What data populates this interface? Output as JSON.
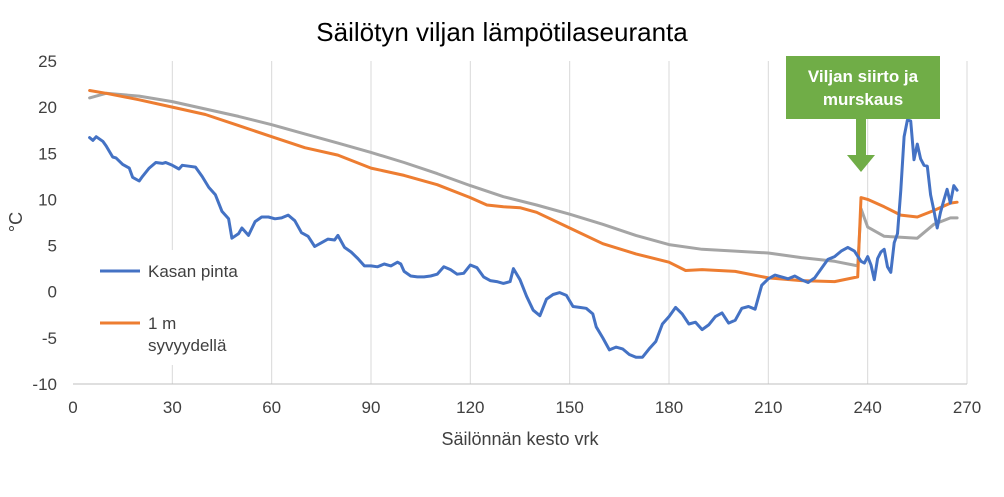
{
  "chart_data": {
    "type": "line",
    "title": "Säilötyn viljan lämpötilaseuranta",
    "xlabel": "Säilönnän kesto vrk",
    "ylabel": "°C",
    "xlim": [
      0,
      270
    ],
    "ylim": [
      -10,
      25
    ],
    "xticks": [
      0,
      30,
      60,
      90,
      120,
      150,
      180,
      210,
      240,
      270
    ],
    "yticks": [
      -10,
      -5,
      0,
      5,
      10,
      15,
      20,
      25
    ],
    "grid": "vertical",
    "legend_placement": "left",
    "annotation": {
      "line1": "Viljan siirto ja",
      "line2": "murskaus",
      "x": 239,
      "color": "#70ad47"
    },
    "series": [
      {
        "name": "Kasan pinta",
        "legend_label": "Kasan pinta",
        "color": "#4472c4",
        "x": [
          5,
          6,
          7,
          9,
          10,
          12,
          13,
          15,
          17,
          18,
          20,
          21,
          23,
          25,
          27,
          28,
          30,
          32,
          33,
          35,
          37,
          39,
          41,
          43,
          45,
          47,
          48,
          50,
          51,
          53,
          55,
          57,
          59,
          61,
          63,
          65,
          67,
          69,
          71,
          73,
          75,
          77,
          79,
          80,
          82,
          84,
          86,
          88,
          90,
          92,
          94,
          96,
          98,
          99,
          100,
          102,
          104,
          106,
          108,
          110,
          112,
          114,
          116,
          118,
          120,
          122,
          124,
          126,
          128,
          130,
          132,
          133,
          135,
          137,
          139,
          141,
          143,
          145,
          147,
          149,
          151,
          153,
          155,
          157,
          158,
          160,
          162,
          164,
          166,
          168,
          170,
          172,
          174,
          176,
          178,
          180,
          182,
          184,
          186,
          188,
          190,
          192,
          194,
          196,
          198,
          200,
          202,
          204,
          206,
          208,
          210,
          212,
          214,
          216,
          218,
          220,
          222,
          224,
          226,
          228,
          230,
          232,
          234,
          236,
          238,
          239,
          240,
          241,
          242,
          243,
          244,
          245,
          246,
          247,
          248,
          249,
          250,
          251,
          252,
          253,
          254,
          255,
          256,
          257,
          258,
          259,
          260,
          261,
          262,
          263,
          264,
          265,
          266,
          267
        ],
        "values": [
          16.7,
          16.4,
          16.8,
          16.3,
          15.8,
          14.6,
          14.5,
          13.8,
          13.4,
          12.4,
          12.0,
          12.5,
          13.4,
          14.0,
          13.9,
          14.0,
          13.7,
          13.3,
          13.7,
          13.6,
          13.5,
          12.5,
          11.3,
          10.5,
          8.7,
          7.9,
          5.8,
          6.3,
          6.9,
          6.1,
          7.6,
          8.1,
          8.1,
          7.9,
          8.0,
          8.3,
          7.7,
          6.4,
          6.0,
          4.9,
          5.3,
          5.7,
          5.6,
          6.1,
          4.8,
          4.3,
          3.6,
          2.8,
          2.8,
          2.7,
          3.0,
          2.8,
          3.2,
          3.0,
          2.2,
          1.7,
          1.6,
          1.6,
          1.7,
          1.9,
          2.7,
          2.4,
          1.9,
          2.0,
          2.9,
          2.6,
          1.6,
          1.2,
          1.1,
          0.9,
          1.1,
          2.5,
          1.3,
          -0.5,
          -2.0,
          -2.6,
          -0.8,
          -0.3,
          -0.1,
          -0.4,
          -1.6,
          -1.7,
          -1.8,
          -2.4,
          -3.8,
          -5.0,
          -6.3,
          -6.0,
          -6.2,
          -6.8,
          -7.1,
          -7.1,
          -6.2,
          -5.4,
          -3.5,
          -2.7,
          -1.7,
          -2.4,
          -3.5,
          -3.3,
          -4.1,
          -3.6,
          -2.7,
          -2.3,
          -3.4,
          -3.1,
          -1.8,
          -1.6,
          -1.9,
          0.7,
          1.4,
          1.8,
          1.6,
          1.4,
          1.7,
          1.3,
          1.0,
          1.5,
          2.5,
          3.5,
          3.8,
          4.4,
          4.8,
          4.4,
          3.3,
          3.1,
          3.8,
          2.9,
          1.3,
          3.6,
          4.3,
          4.6,
          2.7,
          2.1,
          5.3,
          6.3,
          11.0,
          16.8,
          18.6,
          18.5,
          14.3,
          16.0,
          14.4,
          13.7,
          13.6,
          10.5,
          8.8,
          6.9,
          8.6,
          9.9,
          11.1,
          9.6,
          11.5,
          11.0
        ]
      },
      {
        "name": "1 m syvyydellä",
        "legend_label_line1": "1 m",
        "legend_label_line2": "syvyydellä",
        "color": "#ed7d31",
        "x": [
          5,
          10,
          20,
          30,
          40,
          50,
          60,
          70,
          80,
          90,
          100,
          110,
          120,
          125,
          130,
          135,
          140,
          150,
          160,
          170,
          180,
          185,
          190,
          200,
          210,
          220,
          230,
          237,
          238,
          240,
          245,
          250,
          255,
          260,
          265,
          267
        ],
        "values": [
          21.8,
          21.5,
          20.8,
          20.0,
          19.2,
          18.0,
          16.8,
          15.6,
          14.8,
          13.4,
          12.6,
          11.6,
          10.2,
          9.4,
          9.2,
          9.1,
          8.6,
          6.9,
          5.2,
          4.1,
          3.2,
          2.3,
          2.4,
          2.2,
          1.5,
          1.2,
          1.1,
          1.6,
          10.2,
          10.0,
          9.2,
          8.3,
          8.1,
          8.8,
          9.6,
          9.7
        ]
      },
      {
        "name": "",
        "color": "#a5a5a5",
        "x": [
          5,
          10,
          20,
          30,
          40,
          50,
          60,
          70,
          80,
          90,
          100,
          110,
          120,
          130,
          140,
          150,
          160,
          170,
          180,
          190,
          200,
          210,
          220,
          230,
          237,
          238,
          240,
          245,
          250,
          255,
          260,
          265,
          267
        ],
        "values": [
          21.0,
          21.5,
          21.2,
          20.6,
          19.8,
          19.0,
          18.1,
          17.1,
          16.1,
          15.1,
          14.0,
          12.8,
          11.5,
          10.3,
          9.4,
          8.4,
          7.3,
          6.1,
          5.1,
          4.6,
          4.4,
          4.2,
          3.7,
          3.3,
          2.8,
          9.0,
          7.0,
          6.0,
          5.9,
          5.8,
          7.3,
          8.0,
          8.0
        ]
      }
    ]
  }
}
